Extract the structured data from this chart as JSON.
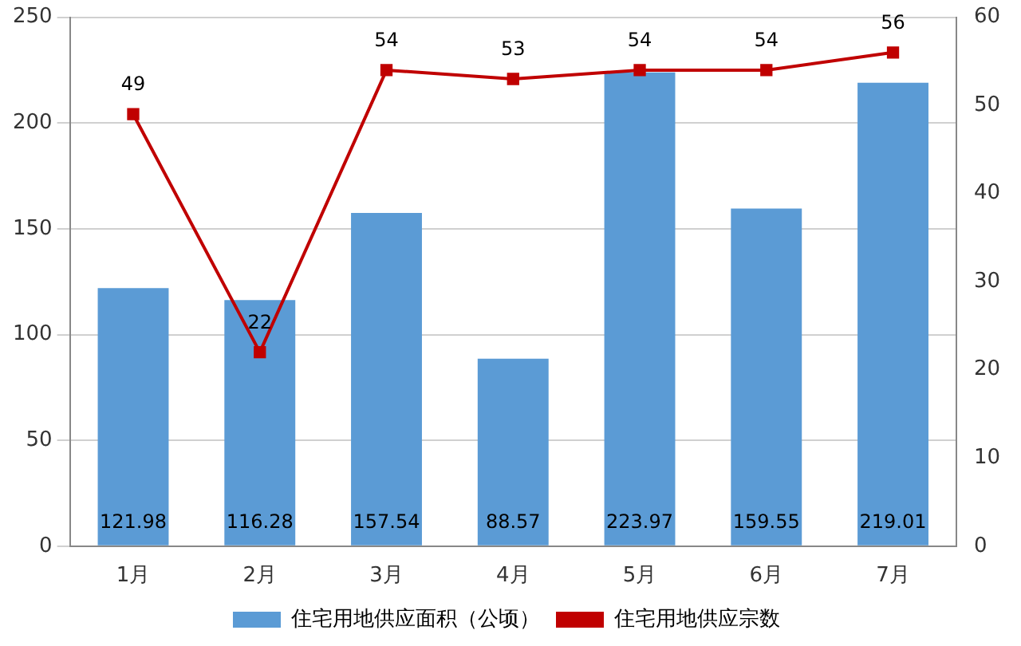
{
  "chart_data": {
    "type": "bar",
    "categories": [
      "1月",
      "2月",
      "3月",
      "4月",
      "5月",
      "6月",
      "7月"
    ],
    "series": [
      {
        "name": "住宅用地供应面积（公顷）",
        "color": "#5b9bd5",
        "values": [
          121.98,
          116.28,
          157.54,
          88.57,
          223.97,
          159.55,
          219.01
        ]
      },
      {
        "name": "住宅用地供应宗数",
        "type": "line",
        "axis": "y2",
        "color": "#c00000",
        "marker": "square",
        "values": [
          49,
          22,
          54,
          53,
          54,
          54,
          56
        ]
      }
    ],
    "ylim": [
      0,
      250
    ],
    "yticks": [
      0,
      50,
      100,
      150,
      200,
      250
    ],
    "y2lim": [
      0,
      60
    ],
    "y2ticks": [
      0,
      10,
      20,
      30,
      40,
      50,
      60
    ],
    "grid": "y",
    "legend": "bottom",
    "data_labels": true
  }
}
